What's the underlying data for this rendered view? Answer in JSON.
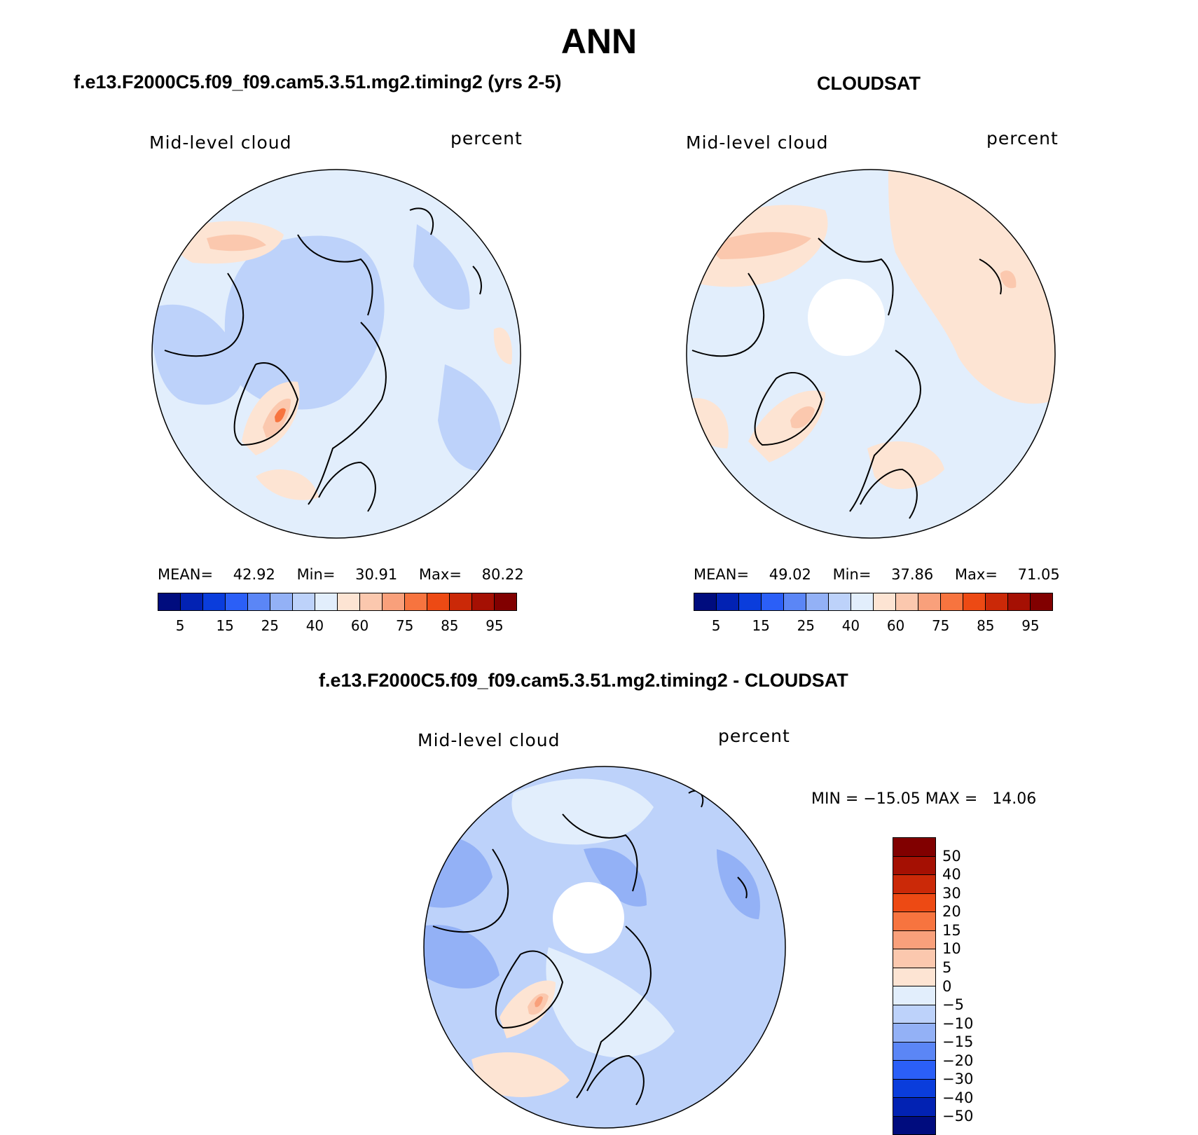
{
  "figure": {
    "title": "ANN"
  },
  "panels": [
    {
      "title": "f.e13.F2000C5.f09_f09.cam5.3.51.mg2.timing2 (yrs 2-5)",
      "variable": "Mid-level cloud",
      "units": "percent",
      "stats": {
        "mean_label": "MEAN=",
        "mean": "42.92",
        "min_label": "Min=",
        "min": "30.91",
        "max_label": "Max=",
        "max": "80.22"
      }
    },
    {
      "title": "CLOUDSAT",
      "variable": "Mid-level cloud",
      "units": "percent",
      "stats": {
        "mean_label": "MEAN=",
        "mean": "49.02",
        "min_label": "Min=",
        "min": "37.86",
        "max_label": "Max=",
        "max": "71.05"
      }
    },
    {
      "title": "f.e13.F2000C5.f09_f09.cam5.3.51.mg2.timing2 - CLOUDSAT",
      "variable": "Mid-level cloud",
      "units": "percent",
      "minmax_text": "MIN = −15.05 MAX =   14.06"
    }
  ],
  "colorbars": {
    "absolute": {
      "orientation": "horizontal",
      "colors": [
        "#000c7e",
        "#0222b3",
        "#0a3ddc",
        "#2b5ff7",
        "#5b86f6",
        "#93b1f6",
        "#bdd2fa",
        "#e2eefc",
        "#fde4d3",
        "#fbc8ae",
        "#f9a07b",
        "#f7743f",
        "#ed4a14",
        "#cb2908",
        "#a51003",
        "#810000"
      ],
      "tick_labels": [
        "5",
        "15",
        "25",
        "40",
        "60",
        "75",
        "85",
        "95"
      ]
    },
    "difference": {
      "orientation": "vertical",
      "colors_top_to_bottom": [
        "#810000",
        "#a51003",
        "#cb2908",
        "#ed4a14",
        "#f7743f",
        "#f9a07b",
        "#fbc8ae",
        "#fde4d3",
        "#e2eefc",
        "#bdd2fa",
        "#93b1f6",
        "#5b86f6",
        "#2b5ff7",
        "#0a3ddc",
        "#0222b3",
        "#000c7e"
      ],
      "tick_labels": [
        "50",
        "40",
        "30",
        "20",
        "15",
        "10",
        "5",
        "0",
        "−5",
        "−10",
        "−15",
        "−20",
        "−30",
        "−40",
        "−50"
      ]
    }
  },
  "map_data": {
    "projection": "north-polar-stereographic",
    "region": "Arctic",
    "panel_a_fill": {
      "base": "#e2eefc",
      "arctic_ocean": "#bdd2fa",
      "greenland_peak": "#f7743f"
    },
    "panel_b_fill": {
      "base": "#e2eefc",
      "siberia": "#fde4d3",
      "pole_hole": "no data"
    },
    "panel_c_fill": {
      "base": "#bdd2fa",
      "lower": "#93b1f6",
      "greenland_peak": "#f9a07b",
      "pole_hole": "no data"
    }
  }
}
